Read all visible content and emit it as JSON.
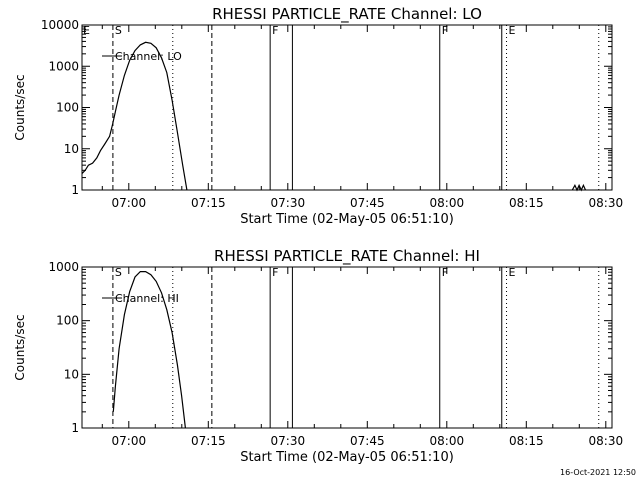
{
  "timestamp": "16-Oct-2021 12:50",
  "chart_data": [
    {
      "type": "line",
      "title": "RHESSI PARTICLE_RATE Channel: LO",
      "xlabel": "Start Time (02-May-05 06:51:10)",
      "ylabel": "Counts/sec",
      "x_unit": "minutes after 06:51:10",
      "xlim": [
        0,
        100
      ],
      "ylim": [
        1,
        10000
      ],
      "yscale": "log",
      "xticks": [
        {
          "label": "07:00",
          "x": 8.83
        },
        {
          "label": "07:15",
          "x": 23.83
        },
        {
          "label": "07:30",
          "x": 38.83
        },
        {
          "label": "07:45",
          "x": 53.83
        },
        {
          "label": "08:00",
          "x": 68.83
        },
        {
          "label": "08:15",
          "x": 83.83
        },
        {
          "label": "08:30",
          "x": 98.83
        }
      ],
      "yticks": [
        {
          "label": "1",
          "y": 1
        },
        {
          "label": "10",
          "y": 10
        },
        {
          "label": "100",
          "y": 100
        },
        {
          "label": "1000",
          "y": 1000
        },
        {
          "label": "10000",
          "y": 10000
        }
      ],
      "legend": {
        "label": "Channel: LO",
        "position": "top-left"
      },
      "series": [
        {
          "name": "Channel: LO",
          "points": [
            [
              0,
              2.5
            ],
            [
              0.6,
              3
            ],
            [
              1.2,
              4
            ],
            [
              2,
              4.5
            ],
            [
              2.8,
              6
            ],
            [
              3.5,
              9
            ],
            [
              4.3,
              13
            ],
            [
              5.2,
              20
            ],
            [
              5.8,
              40
            ],
            [
              6.3,
              80
            ],
            [
              7,
              200
            ],
            [
              8,
              600
            ],
            [
              9,
              1400
            ],
            [
              10,
              2400
            ],
            [
              11,
              3300
            ],
            [
              12,
              3800
            ],
            [
              13,
              3600
            ],
            [
              14,
              2800
            ],
            [
              15,
              1600
            ],
            [
              16,
              700
            ],
            [
              17,
              150
            ],
            [
              18,
              25
            ],
            [
              19,
              4
            ],
            [
              19.8,
              1
            ]
          ]
        },
        {
          "name": "",
          "points": [
            [
              92.5,
              1
            ],
            [
              93,
              1.3
            ],
            [
              93.4,
              1
            ],
            [
              93.8,
              1.3
            ],
            [
              94.2,
              1
            ],
            [
              94.6,
              1.3
            ],
            [
              95,
              1
            ]
          ]
        }
      ],
      "markers": [
        {
          "type": "dashed",
          "x": 5.83,
          "label": "S"
        },
        {
          "type": "dotted",
          "x": 17.13,
          "label": ""
        },
        {
          "type": "dashed",
          "x": 24.5,
          "label": ""
        },
        {
          "type": "solid",
          "x": 35.5,
          "label": "F"
        },
        {
          "type": "solid",
          "x": 39.7,
          "label": ""
        },
        {
          "type": "solid",
          "x": 67.5,
          "label": "F"
        },
        {
          "type": "solid",
          "x": 79.2,
          "label": ""
        },
        {
          "type": "dotted",
          "x": 80.1,
          "label": "E"
        },
        {
          "type": "dotted",
          "x": 97.5,
          "label": ""
        }
      ],
      "corner_flag": "E"
    },
    {
      "type": "line",
      "title": "RHESSI PARTICLE_RATE Channel: HI",
      "xlabel": "Start Time (02-May-05 06:51:10)",
      "ylabel": "Counts/sec",
      "x_unit": "minutes after 06:51:10",
      "xlim": [
        0,
        100
      ],
      "ylim": [
        1,
        1000
      ],
      "yscale": "log",
      "xticks": [
        {
          "label": "07:00",
          "x": 8.83
        },
        {
          "label": "07:15",
          "x": 23.83
        },
        {
          "label": "07:30",
          "x": 38.83
        },
        {
          "label": "07:45",
          "x": 53.83
        },
        {
          "label": "08:00",
          "x": 68.83
        },
        {
          "label": "08:15",
          "x": 83.83
        },
        {
          "label": "08:30",
          "x": 98.83
        }
      ],
      "yticks": [
        {
          "label": "1",
          "y": 1
        },
        {
          "label": "10",
          "y": 10
        },
        {
          "label": "100",
          "y": 100
        },
        {
          "label": "1000",
          "y": 1000
        }
      ],
      "legend": {
        "label": "Channel: HI",
        "position": "top-left"
      },
      "series": [
        {
          "name": "Channel: HI",
          "points": [
            [
              5.9,
              2
            ],
            [
              6.3,
              6
            ],
            [
              7,
              30
            ],
            [
              8,
              130
            ],
            [
              9,
              350
            ],
            [
              10,
              650
            ],
            [
              11,
              820
            ],
            [
              12,
              820
            ],
            [
              13,
              720
            ],
            [
              14,
              540
            ],
            [
              15,
              330
            ],
            [
              16,
              160
            ],
            [
              17,
              60
            ],
            [
              18,
              15
            ],
            [
              18.8,
              4
            ],
            [
              19.5,
              1
            ]
          ]
        }
      ],
      "markers": [
        {
          "type": "dashed",
          "x": 5.83,
          "label": "S"
        },
        {
          "type": "dotted",
          "x": 17.13,
          "label": ""
        },
        {
          "type": "dashed",
          "x": 24.5,
          "label": ""
        },
        {
          "type": "solid",
          "x": 35.5,
          "label": "F"
        },
        {
          "type": "solid",
          "x": 39.7,
          "label": ""
        },
        {
          "type": "solid",
          "x": 67.5,
          "label": "F"
        },
        {
          "type": "solid",
          "x": 79.2,
          "label": ""
        },
        {
          "type": "dotted",
          "x": 80.1,
          "label": "E"
        },
        {
          "type": "dotted",
          "x": 97.5,
          "label": ""
        }
      ],
      "corner_flag": ""
    }
  ]
}
